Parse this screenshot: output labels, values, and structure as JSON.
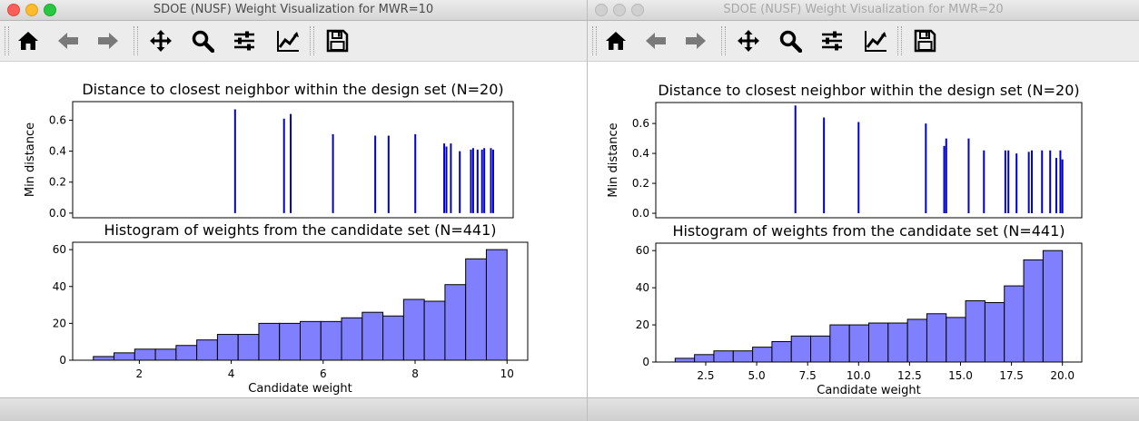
{
  "windows": [
    {
      "title": "SDOE (NUSF) Weight Visualization for MWR=10",
      "toolbar": [
        "home-icon",
        "back-arrow-icon",
        "forward-arrow-icon",
        "pan-move-icon",
        "zoom-magnifier-icon",
        "configure-subplots-icon",
        "edit-axes-icon",
        "save-floppy-icon"
      ],
      "chart_data": [
        {
          "type": "bar",
          "title": "Distance to closest neighbor within the design set (N=20)",
          "xlabel": "",
          "ylabel": "Min distance",
          "xlim": [
            0.55,
            10.45
          ],
          "ylim": [
            -0.03,
            0.72
          ],
          "yticks": [
            0.0,
            0.2,
            0.4,
            0.6
          ],
          "ytick_labels": [
            "0.0",
            "0.2",
            "0.4",
            "0.6"
          ],
          "color": "#0000cc",
          "x": [
            4.2,
            5.3,
            5.45,
            6.4,
            7.35,
            7.65,
            8.25,
            8.9,
            8.95,
            9.05,
            9.25,
            9.5,
            9.55,
            9.65,
            9.75,
            9.8,
            9.95,
            10.0
          ],
          "values": [
            0.67,
            0.61,
            0.64,
            0.51,
            0.5,
            0.5,
            0.51,
            0.45,
            0.43,
            0.45,
            0.4,
            0.41,
            0.42,
            0.41,
            0.41,
            0.42,
            0.42,
            0.41
          ]
        },
        {
          "type": "histogram",
          "title": "Histogram of weights from the candidate set (N=441)",
          "xlabel": "Candidate weight",
          "ylabel": "",
          "xlim": [
            0.55,
            10.45
          ],
          "ylim": [
            0,
            64
          ],
          "xticks": [
            2,
            4,
            6,
            8,
            10
          ],
          "xtick_labels": [
            "2",
            "4",
            "6",
            "8",
            "10"
          ],
          "yticks": [
            0,
            20,
            40,
            60
          ],
          "ytick_labels": [
            "0",
            "20",
            "40",
            "60"
          ],
          "color": "#8080ff",
          "edgecolor": "#000000",
          "bin_start": 1.0,
          "bin_width": 0.45,
          "values": [
            2,
            4,
            6,
            6,
            8,
            11,
            14,
            14,
            20,
            20,
            21,
            21,
            23,
            26,
            24,
            33,
            32,
            41,
            55,
            60
          ]
        }
      ]
    },
    {
      "title": "SDOE (NUSF) Weight Visualization for MWR=20",
      "toolbar": [
        "home-icon",
        "back-arrow-icon",
        "forward-arrow-icon",
        "pan-move-icon",
        "zoom-magnifier-icon",
        "configure-subplots-icon",
        "edit-axes-icon",
        "save-floppy-icon"
      ],
      "chart_data": [
        {
          "type": "bar",
          "title": "Distance to closest neighbor within the design set (N=20)",
          "xlabel": "",
          "ylabel": "Min distance",
          "xlim": [
            0.05,
            20.95
          ],
          "ylim": [
            -0.03,
            0.74
          ],
          "yticks": [
            0.0,
            0.2,
            0.4,
            0.6
          ],
          "ytick_labels": [
            "0.0",
            "0.2",
            "0.4",
            "0.6"
          ],
          "color": "#0000cc",
          "x": [
            6.9,
            8.3,
            10.0,
            13.3,
            14.2,
            14.3,
            15.4,
            16.15,
            17.2,
            17.35,
            17.75,
            18.35,
            18.5,
            19.0,
            19.4,
            19.7,
            19.9,
            20.0
          ],
          "values": [
            0.72,
            0.64,
            0.61,
            0.6,
            0.45,
            0.5,
            0.5,
            0.42,
            0.42,
            0.42,
            0.4,
            0.41,
            0.42,
            0.42,
            0.42,
            0.37,
            0.42,
            0.36
          ]
        },
        {
          "type": "histogram",
          "title": "Histogram of weights from the candidate set (N=441)",
          "xlabel": "Candidate weight",
          "ylabel": "",
          "xlim": [
            0.05,
            20.95
          ],
          "ylim": [
            0,
            64
          ],
          "xticks": [
            2.5,
            5.0,
            7.5,
            10.0,
            12.5,
            15.0,
            17.5,
            20.0
          ],
          "xtick_labels": [
            "2.5",
            "5.0",
            "7.5",
            "10.0",
            "12.5",
            "15.0",
            "17.5",
            "20.0"
          ],
          "yticks": [
            0,
            20,
            40,
            60
          ],
          "ytick_labels": [
            "0",
            "20",
            "40",
            "60"
          ],
          "color": "#8080ff",
          "edgecolor": "#000000",
          "bin_start": 1.0,
          "bin_width": 0.95,
          "values": [
            2,
            4,
            6,
            6,
            8,
            11,
            14,
            14,
            20,
            20,
            21,
            21,
            23,
            26,
            24,
            33,
            32,
            41,
            55,
            60
          ]
        }
      ]
    }
  ]
}
